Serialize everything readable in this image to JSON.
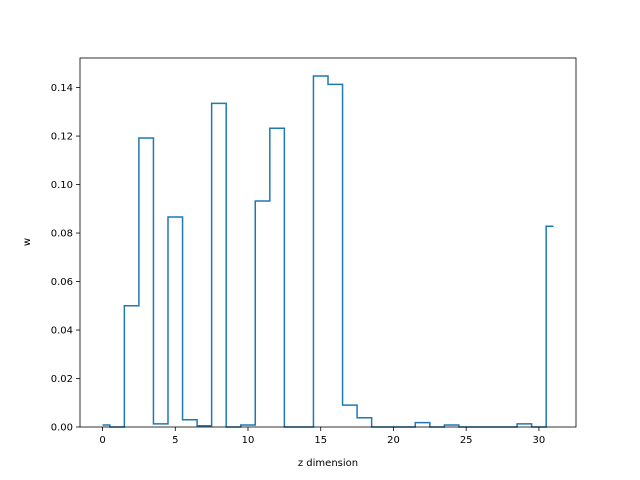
{
  "chart_data": {
    "type": "step",
    "xlabel": "z dimension",
    "ylabel": "w",
    "xlim": [
      -1.55,
      32.55
    ],
    "ylim": [
      0,
      0.1522
    ],
    "xticks": [
      0,
      5,
      10,
      15,
      20,
      25,
      30
    ],
    "yticks": [
      0.0,
      0.02,
      0.04,
      0.06,
      0.08,
      0.1,
      0.12,
      0.14
    ],
    "xtick_labels": [
      "0",
      "5",
      "10",
      "15",
      "20",
      "25",
      "30"
    ],
    "ytick_labels": [
      "0.00",
      "0.02",
      "0.04",
      "0.06",
      "0.08",
      "0.10",
      "0.12",
      "0.14"
    ],
    "grid": false,
    "x": [
      0,
      1,
      2,
      3,
      4,
      5,
      6,
      7,
      8,
      9,
      10,
      11,
      12,
      13,
      14,
      15,
      16,
      17,
      18,
      19,
      20,
      21,
      22,
      23,
      24,
      25,
      26,
      27,
      28,
      29,
      30,
      31
    ],
    "y": [
      0.0008,
      0.0,
      0.05,
      0.1192,
      0.0013,
      0.0866,
      0.003,
      0.0005,
      0.1335,
      0.0,
      0.0008,
      0.0932,
      0.1232,
      0.0,
      0.0,
      0.1448,
      0.1413,
      0.009,
      0.0038,
      0.0,
      0.0,
      0.0,
      0.0018,
      0.0,
      0.0008,
      0.0,
      0.0,
      0.0,
      0.0,
      0.0013,
      0.0,
      0.0828
    ],
    "colors": {
      "line": "#1f77b4"
    }
  }
}
